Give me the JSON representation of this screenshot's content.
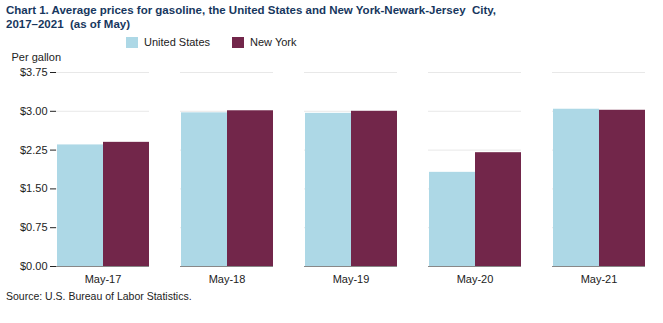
{
  "chart_data": {
    "type": "bar",
    "title": "Chart 1. Average prices for gasoline, the United States and New York-Newark-Jersey  City,",
    "subtitle": "2017–2021  (as of May)",
    "ylabel": "Per gallon",
    "source": "Source: U.S. Bureau of Labor Statistics.",
    "categories": [
      "May-17",
      "May-18",
      "May-19",
      "May-20",
      "May-21"
    ],
    "series": [
      {
        "name": "United States",
        "color": "#ADD8E6",
        "values": [
          2.35,
          2.97,
          2.96,
          1.82,
          3.04
        ]
      },
      {
        "name": "New York",
        "color": "#72264A",
        "values": [
          2.4,
          3.01,
          3.0,
          2.2,
          3.02
        ]
      }
    ],
    "ylim": [
      0,
      3.75
    ],
    "yticks": [
      {
        "value": 0.0,
        "label": "$0.00"
      },
      {
        "value": 0.75,
        "label": "$0.75"
      },
      {
        "value": 1.5,
        "label": "$1.50"
      },
      {
        "value": 2.25,
        "label": "$2.25"
      },
      {
        "value": 3.0,
        "label": "$3.00"
      },
      {
        "value": 3.75,
        "label": "$3.75"
      }
    ],
    "grid": true,
    "legend": "top"
  }
}
